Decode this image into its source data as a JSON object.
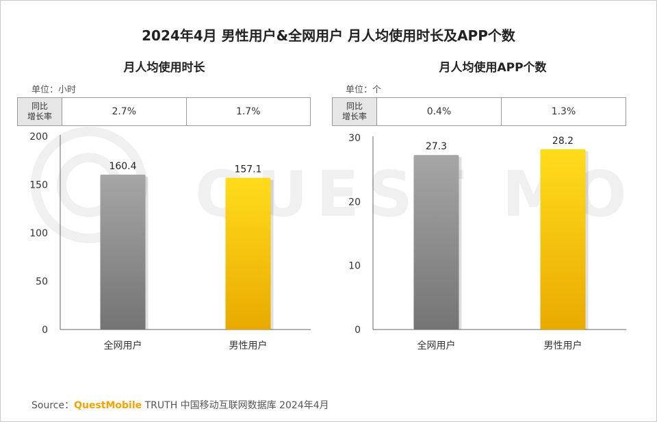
{
  "title": "2024年4月 男性用户&全网用户 月人均使用时长及APP个数",
  "colors": {
    "all_users_bar": "#8a8a8a",
    "male_users_bar": "#ffc000",
    "watermark": "#f0f0f0"
  },
  "watermark": "QUEST MOBILE",
  "panels": [
    {
      "title": "月人均使用时长",
      "unit_label": "单位：",
      "unit": "小时",
      "yoy_label_line1": "同比",
      "yoy_label_line2": "增长率",
      "yoy": [
        "2.7%",
        "1.7%"
      ]
    },
    {
      "title": "月人均使用APP个数",
      "unit_label": "单位：",
      "unit": "个",
      "yoy_label_line1": "同比",
      "yoy_label_line2": "增长率",
      "yoy": [
        "0.4%",
        "1.3%"
      ]
    }
  ],
  "chart_data": [
    {
      "type": "bar",
      "title": "月人均使用时长",
      "categories": [
        "全网用户",
        "男性用户"
      ],
      "values": [
        160.4,
        157.1
      ],
      "value_labels": [
        "160.4",
        "157.1"
      ],
      "ylim": [
        0,
        200
      ],
      "yticks": [
        0,
        50,
        100,
        150,
        200
      ],
      "ylabel": "",
      "grid": false,
      "bar_colors": [
        "#8a8a8a",
        "#ffc000"
      ]
    },
    {
      "type": "bar",
      "title": "月人均使用APP个数",
      "categories": [
        "全网用户",
        "男性用户"
      ],
      "values": [
        27.3,
        28.2
      ],
      "value_labels": [
        "27.3",
        "28.2"
      ],
      "ylim": [
        0,
        30
      ],
      "yticks": [
        0,
        10,
        20,
        30
      ],
      "ylabel": "",
      "grid": false,
      "bar_colors": [
        "#8a8a8a",
        "#ffc000"
      ]
    }
  ],
  "source": {
    "prefix": "Source：",
    "brand": "QuestMobile",
    "text": "TRUTH 中国移动互联网数据库 2024年4月"
  }
}
